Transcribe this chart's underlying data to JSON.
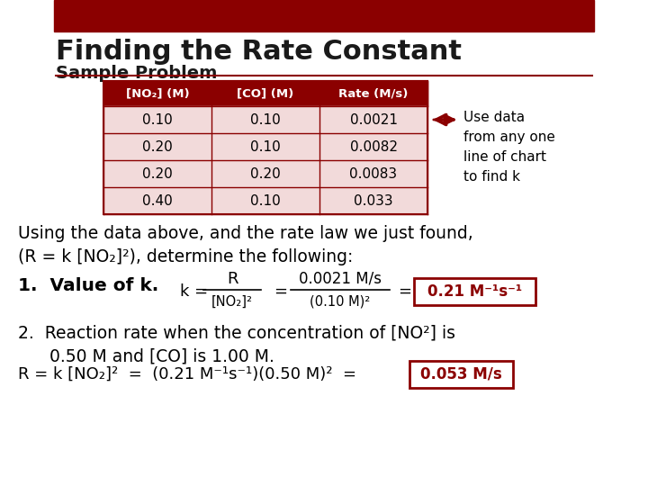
{
  "title": "Finding the Rate Constant",
  "subtitle": "Sample Problem",
  "bg_color": "#ffffff",
  "header_bar_color": "#8B0000",
  "title_color": "#1a1a1a",
  "subtitle_color": "#1a1a1a",
  "table": {
    "headers": [
      "[NO₂] (M)",
      "[CO] (M)",
      "Rate (M/s)"
    ],
    "rows": [
      [
        "0.10",
        "0.10",
        "0.0021"
      ],
      [
        "0.20",
        "0.10",
        "0.0082"
      ],
      [
        "0.20",
        "0.20",
        "0.0083"
      ],
      [
        "0.40",
        "0.10",
        "0.033"
      ]
    ],
    "header_bg": "#8B0000",
    "header_text_color": "#ffffff",
    "row_bg_odd": "#f2dada",
    "row_bg_even": "#ffffff",
    "border_color": "#8B0000",
    "text_color": "#000000"
  },
  "annotation_text": [
    "Use data",
    "from any one",
    "line of chart",
    "to find k"
  ],
  "body_line1": "Using the data above, and the rate law we just found,",
  "body_line2": "(R = k [NO₂]²), determine the following:",
  "item1_label": "1.  Value of k.",
  "item1_answer": "0.21 M⁻¹s⁻¹",
  "item2_line1": "2.  Reaction rate when the concentration of [NO²] is",
  "item2_line2": "    0.50 M and [CO] is 1.00 M.",
  "item2_answer": "0.053 M/s",
  "answer_box_color": "#8B0000",
  "answer_text_color": "#8B0000"
}
